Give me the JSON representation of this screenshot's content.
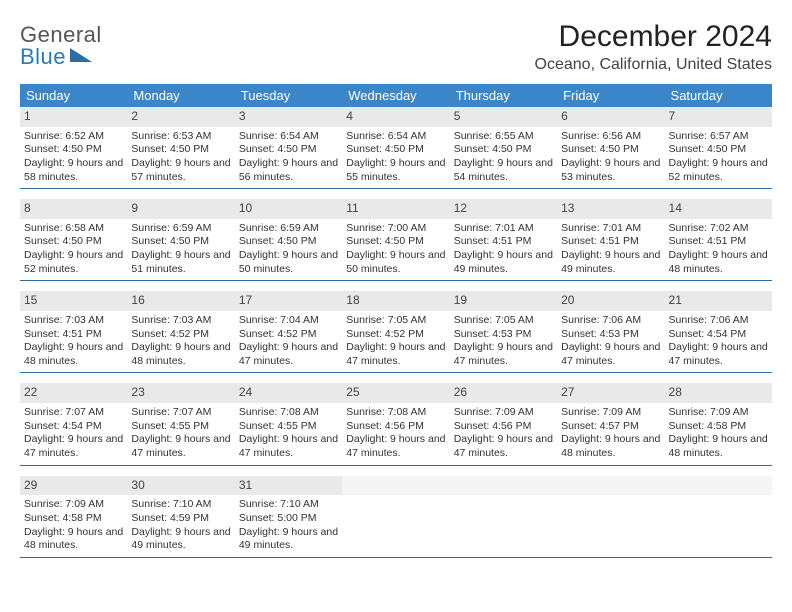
{
  "logo": {
    "word1": "General",
    "word2": "Blue"
  },
  "header": {
    "title": "December 2024",
    "location": "Oceano, California, United States"
  },
  "colors": {
    "header_bg": "#3a86c8",
    "rule": "#2e6ca3",
    "daynum_bg": "#e9e9e9"
  },
  "day_names": [
    "Sunday",
    "Monday",
    "Tuesday",
    "Wednesday",
    "Thursday",
    "Friday",
    "Saturday"
  ],
  "weeks": [
    [
      {
        "n": "1",
        "sr": "6:52 AM",
        "ss": "4:50 PM",
        "dl": "9 hours and 58 minutes."
      },
      {
        "n": "2",
        "sr": "6:53 AM",
        "ss": "4:50 PM",
        "dl": "9 hours and 57 minutes."
      },
      {
        "n": "3",
        "sr": "6:54 AM",
        "ss": "4:50 PM",
        "dl": "9 hours and 56 minutes."
      },
      {
        "n": "4",
        "sr": "6:54 AM",
        "ss": "4:50 PM",
        "dl": "9 hours and 55 minutes."
      },
      {
        "n": "5",
        "sr": "6:55 AM",
        "ss": "4:50 PM",
        "dl": "9 hours and 54 minutes."
      },
      {
        "n": "6",
        "sr": "6:56 AM",
        "ss": "4:50 PM",
        "dl": "9 hours and 53 minutes."
      },
      {
        "n": "7",
        "sr": "6:57 AM",
        "ss": "4:50 PM",
        "dl": "9 hours and 52 minutes."
      }
    ],
    [
      {
        "n": "8",
        "sr": "6:58 AM",
        "ss": "4:50 PM",
        "dl": "9 hours and 52 minutes."
      },
      {
        "n": "9",
        "sr": "6:59 AM",
        "ss": "4:50 PM",
        "dl": "9 hours and 51 minutes."
      },
      {
        "n": "10",
        "sr": "6:59 AM",
        "ss": "4:50 PM",
        "dl": "9 hours and 50 minutes."
      },
      {
        "n": "11",
        "sr": "7:00 AM",
        "ss": "4:50 PM",
        "dl": "9 hours and 50 minutes."
      },
      {
        "n": "12",
        "sr": "7:01 AM",
        "ss": "4:51 PM",
        "dl": "9 hours and 49 minutes."
      },
      {
        "n": "13",
        "sr": "7:01 AM",
        "ss": "4:51 PM",
        "dl": "9 hours and 49 minutes."
      },
      {
        "n": "14",
        "sr": "7:02 AM",
        "ss": "4:51 PM",
        "dl": "9 hours and 48 minutes."
      }
    ],
    [
      {
        "n": "15",
        "sr": "7:03 AM",
        "ss": "4:51 PM",
        "dl": "9 hours and 48 minutes."
      },
      {
        "n": "16",
        "sr": "7:03 AM",
        "ss": "4:52 PM",
        "dl": "9 hours and 48 minutes."
      },
      {
        "n": "17",
        "sr": "7:04 AM",
        "ss": "4:52 PM",
        "dl": "9 hours and 47 minutes."
      },
      {
        "n": "18",
        "sr": "7:05 AM",
        "ss": "4:52 PM",
        "dl": "9 hours and 47 minutes."
      },
      {
        "n": "19",
        "sr": "7:05 AM",
        "ss": "4:53 PM",
        "dl": "9 hours and 47 minutes."
      },
      {
        "n": "20",
        "sr": "7:06 AM",
        "ss": "4:53 PM",
        "dl": "9 hours and 47 minutes."
      },
      {
        "n": "21",
        "sr": "7:06 AM",
        "ss": "4:54 PM",
        "dl": "9 hours and 47 minutes."
      }
    ],
    [
      {
        "n": "22",
        "sr": "7:07 AM",
        "ss": "4:54 PM",
        "dl": "9 hours and 47 minutes."
      },
      {
        "n": "23",
        "sr": "7:07 AM",
        "ss": "4:55 PM",
        "dl": "9 hours and 47 minutes."
      },
      {
        "n": "24",
        "sr": "7:08 AM",
        "ss": "4:55 PM",
        "dl": "9 hours and 47 minutes."
      },
      {
        "n": "25",
        "sr": "7:08 AM",
        "ss": "4:56 PM",
        "dl": "9 hours and 47 minutes."
      },
      {
        "n": "26",
        "sr": "7:09 AM",
        "ss": "4:56 PM",
        "dl": "9 hours and 47 minutes."
      },
      {
        "n": "27",
        "sr": "7:09 AM",
        "ss": "4:57 PM",
        "dl": "9 hours and 48 minutes."
      },
      {
        "n": "28",
        "sr": "7:09 AM",
        "ss": "4:58 PM",
        "dl": "9 hours and 48 minutes."
      }
    ],
    [
      {
        "n": "29",
        "sr": "7:09 AM",
        "ss": "4:58 PM",
        "dl": "9 hours and 48 minutes."
      },
      {
        "n": "30",
        "sr": "7:10 AM",
        "ss": "4:59 PM",
        "dl": "9 hours and 49 minutes."
      },
      {
        "n": "31",
        "sr": "7:10 AM",
        "ss": "5:00 PM",
        "dl": "9 hours and 49 minutes."
      },
      {
        "empty": true
      },
      {
        "empty": true
      },
      {
        "empty": true
      },
      {
        "empty": true
      }
    ]
  ],
  "labels": {
    "sunrise": "Sunrise:",
    "sunset": "Sunset:",
    "daylight": "Daylight:"
  }
}
